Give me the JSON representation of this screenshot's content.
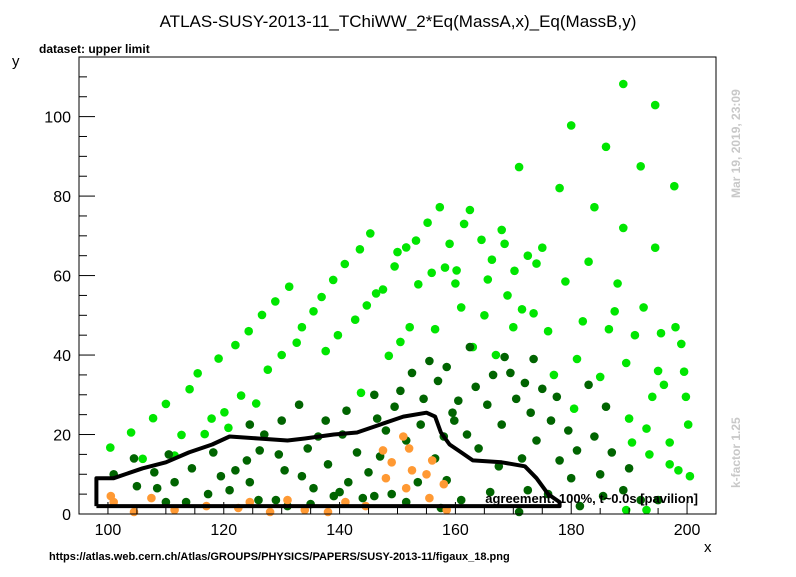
{
  "chart_data": {
    "type": "scatter",
    "title": "ATLAS-SUSY-2013-11_TChiWW_2*Eq(MassA,x)_Eq(MassB,y)",
    "subtitle": "dataset: upper limit",
    "xlabel": "x",
    "ylabel": "y",
    "xlim": [
      95,
      205
    ],
    "ylim": [
      0,
      115
    ],
    "xticks": [
      100,
      120,
      140,
      160,
      180,
      200
    ],
    "yticks": [
      0,
      20,
      40,
      60,
      80,
      100
    ],
    "grid": false,
    "legend": "none",
    "annotation": "agreement: 100%, t~0.0s [pavilion]",
    "side_label_top": "Mar 19, 2019, 23:09",
    "side_label_bottom": "k-factor 1.25",
    "footer_url": "https://atlas.web.cern.ch/Atlas/GROUPS/PHYSICS/PAPERS/SUSY-2013-11/figaux_18.png",
    "colors": {
      "bright_green": "#00e600",
      "dark_green": "#006400",
      "orange": "#ff9933",
      "contour": "#000000",
      "side_label": "#c8c8c8"
    },
    "series": [
      {
        "color": "bright_green",
        "points": [
          [
            100.4,
            16.7
          ],
          [
            104,
            20.5
          ],
          [
            106,
            13.9
          ],
          [
            107.8,
            24.1
          ],
          [
            110,
            27.7
          ],
          [
            111.5,
            14.7
          ],
          [
            112.7,
            19.9
          ],
          [
            114.1,
            31.4
          ],
          [
            115.5,
            35.4
          ],
          [
            116.7,
            20.1
          ],
          [
            117.9,
            24.0
          ],
          [
            119.1,
            39.1
          ],
          [
            120.1,
            25.6
          ],
          [
            120.8,
            21.7
          ],
          [
            122.0,
            42.5
          ],
          [
            123.0,
            29.8
          ],
          [
            124.3,
            46.0
          ],
          [
            125.6,
            27.8
          ],
          [
            126.6,
            50.1
          ],
          [
            127.6,
            36.3
          ],
          [
            128.9,
            53.5
          ],
          [
            130.0,
            40.0
          ],
          [
            131.3,
            57.2
          ],
          [
            132.6,
            43.1
          ],
          [
            133.5,
            47.0
          ],
          [
            135.5,
            51.0
          ],
          [
            136.9,
            54.6
          ],
          [
            137.6,
            41.0
          ],
          [
            138.9,
            58.9
          ],
          [
            139.7,
            45.0
          ],
          [
            140.9,
            62.9
          ],
          [
            142.7,
            48.9
          ],
          [
            143.5,
            66.6
          ],
          [
            143.7,
            30.5
          ],
          [
            144.7,
            52.5
          ],
          [
            145.3,
            70.6
          ],
          [
            146.3,
            55.5
          ],
          [
            147.5,
            56.5
          ],
          [
            148.5,
            39.8
          ],
          [
            149.5,
            62.3
          ],
          [
            150.0,
            65.9
          ],
          [
            150.5,
            43.3
          ],
          [
            151.5,
            67.1
          ],
          [
            152.1,
            47.0
          ],
          [
            153.2,
            68.8
          ],
          [
            153.6,
            57.8
          ],
          [
            155.2,
            73.3
          ],
          [
            155.9,
            60.7
          ],
          [
            156.5,
            46.5
          ],
          [
            157.3,
            77.2
          ],
          [
            158.2,
            62.0
          ],
          [
            159.0,
            68.0
          ],
          [
            160.0,
            58.0
          ],
          [
            160.2,
            61.3
          ],
          [
            161.0,
            52.0
          ],
          [
            161.5,
            73.0
          ],
          [
            162.5,
            76.5
          ],
          [
            163.0,
            42.0
          ],
          [
            164.5,
            69.0
          ],
          [
            165.0,
            50.0
          ],
          [
            165.6,
            59.0
          ],
          [
            166.3,
            64.0
          ],
          [
            167.0,
            40.0
          ],
          [
            168.0,
            71.5
          ],
          [
            168.5,
            68.0
          ],
          [
            169.0,
            55.0
          ],
          [
            170.0,
            47.0
          ],
          [
            170.2,
            61.2
          ],
          [
            171.0,
            87.3
          ],
          [
            171.5,
            51.5
          ],
          [
            172.5,
            65.0
          ],
          [
            173.5,
            50.5
          ],
          [
            174.0,
            63.0
          ],
          [
            175.0,
            67.0
          ],
          [
            176.0,
            46.0
          ],
          [
            177.0,
            35.0
          ],
          [
            178.0,
            82.0
          ],
          [
            179.0,
            58.5
          ],
          [
            180.0,
            97.8
          ],
          [
            180.5,
            26.5
          ],
          [
            181.0,
            39.0
          ],
          [
            182.0,
            48.5
          ],
          [
            183.0,
            63.5
          ],
          [
            184.0,
            77.2
          ],
          [
            185.0,
            34.5
          ],
          [
            186.0,
            92.4
          ],
          [
            186.5,
            46.5
          ],
          [
            187.5,
            51.0
          ],
          [
            188.0,
            58.0
          ],
          [
            189.0,
            72.0
          ],
          [
            189.0,
            108.2
          ],
          [
            189.5,
            38.0
          ],
          [
            190.0,
            24.0
          ],
          [
            190.5,
            18.0
          ],
          [
            191.0,
            45.0
          ],
          [
            192.0,
            87.5
          ],
          [
            192.5,
            52.0
          ],
          [
            193.0,
            21.5
          ],
          [
            193.5,
            15.0
          ],
          [
            194.0,
            29.5
          ],
          [
            194.5,
            102.9
          ],
          [
            194.5,
            67.0
          ],
          [
            195.0,
            36.0
          ],
          [
            195.5,
            45.5
          ],
          [
            196.0,
            32.5
          ],
          [
            197.0,
            18.0
          ],
          [
            197.0,
            12.5
          ],
          [
            197.8,
            82.5
          ],
          [
            198.0,
            47.0
          ],
          [
            198.5,
            11.0
          ],
          [
            199.0,
            42.8
          ],
          [
            199.5,
            35.8
          ],
          [
            199.8,
            29.5
          ],
          [
            200.2,
            22.5
          ],
          [
            200.5,
            9.5
          ],
          [
            193.0,
            1.0
          ],
          [
            189.5,
            1.0
          ]
        ]
      },
      {
        "color": "dark_green",
        "points": [
          [
            101.0,
            10.0
          ],
          [
            105.0,
            7.0
          ],
          [
            108.0,
            10.5
          ],
          [
            110.5,
            15.0
          ],
          [
            111.5,
            8.0
          ],
          [
            114.5,
            11.5
          ],
          [
            117.3,
            5.0
          ],
          [
            118.2,
            15.5
          ],
          [
            121.0,
            6.0
          ],
          [
            122.0,
            11.0
          ],
          [
            124.0,
            13.5
          ],
          [
            124.5,
            22.5
          ],
          [
            126.0,
            3.5
          ],
          [
            126.2,
            16.0
          ],
          [
            127.0,
            20.0
          ],
          [
            129.5,
            15.0
          ],
          [
            130.0,
            23.5
          ],
          [
            130.5,
            11.0
          ],
          [
            131.0,
            2.0
          ],
          [
            133.0,
            27.5
          ],
          [
            133.5,
            9.5
          ],
          [
            134.5,
            16.5
          ],
          [
            135.5,
            6.5
          ],
          [
            136.3,
            19.5
          ],
          [
            137.6,
            23.5
          ],
          [
            138.0,
            12.5
          ],
          [
            139.0,
            4.5
          ],
          [
            140.5,
            20.0
          ],
          [
            141.2,
            26.0
          ],
          [
            141.5,
            8.0
          ],
          [
            143.0,
            15.5
          ],
          [
            144.0,
            4.0
          ],
          [
            145.0,
            10.5
          ],
          [
            146.0,
            30.0
          ],
          [
            146.5,
            24.0
          ],
          [
            147.0,
            14.5
          ],
          [
            148.0,
            21.0
          ],
          [
            149.0,
            5.0
          ],
          [
            149.5,
            27.0
          ],
          [
            150.5,
            31.0
          ],
          [
            151.5,
            18.5
          ],
          [
            152.5,
            35.5
          ],
          [
            153.5,
            8.0
          ],
          [
            154.0,
            22.5
          ],
          [
            154.5,
            29.0
          ],
          [
            155.5,
            38.5
          ],
          [
            156.5,
            14.0
          ],
          [
            157.0,
            33.5
          ],
          [
            158.0,
            19.5
          ],
          [
            158.5,
            37.0
          ],
          [
            159.5,
            25.5
          ],
          [
            159.8,
            23.5
          ],
          [
            160.5,
            28.5
          ],
          [
            162.0,
            20.0
          ],
          [
            162.5,
            42.0
          ],
          [
            163.5,
            32.0
          ],
          [
            164.0,
            16.5
          ],
          [
            165.5,
            27.5
          ],
          [
            166.5,
            35.0
          ],
          [
            167.5,
            12.0
          ],
          [
            168.0,
            22.5
          ],
          [
            168.5,
            39.5
          ],
          [
            169.5,
            35.5
          ],
          [
            170.5,
            29.0
          ],
          [
            171.5,
            14.0
          ],
          [
            172.0,
            33.0
          ],
          [
            173.0,
            25.5
          ],
          [
            173.5,
            39.0
          ],
          [
            174.0,
            18.5
          ],
          [
            175.0,
            31.5
          ],
          [
            176.5,
            23.5
          ],
          [
            177.5,
            29.5
          ],
          [
            178.0,
            13.5
          ],
          [
            179.5,
            21.0
          ],
          [
            180.0,
            9.0
          ],
          [
            181.0,
            16.0
          ],
          [
            181.5,
            2.0
          ],
          [
            183.0,
            32.5
          ],
          [
            184.0,
            19.5
          ],
          [
            185.0,
            10.0
          ],
          [
            186.0,
            27.0
          ],
          [
            187.0,
            15.5
          ],
          [
            189.0,
            6.0
          ],
          [
            190.0,
            11.5
          ],
          [
            192.0,
            3.5
          ],
          [
            195.0,
            3.5
          ],
          [
            185.5,
            4.5
          ],
          [
            176.0,
            5.0
          ],
          [
            172.5,
            6.0
          ],
          [
            166.0,
            5.5
          ],
          [
            161.0,
            3.5
          ],
          [
            157.5,
            1.5
          ],
          [
            151.5,
            3.0
          ],
          [
            146.0,
            4.5
          ],
          [
            140.0,
            5.5
          ],
          [
            135.0,
            2.5
          ],
          [
            129.0,
            3.5
          ],
          [
            124.5,
            8.0
          ],
          [
            119.5,
            9.5
          ],
          [
            113.5,
            3.0
          ],
          [
            108.5,
            6.5
          ],
          [
            104.5,
            14.0
          ],
          [
            110.0,
            3.0
          ],
          [
            171.0,
            0.5
          ],
          [
            158.5,
            8.5
          ]
        ]
      },
      {
        "color": "orange",
        "points": [
          [
            100.5,
            4.5
          ],
          [
            101.0,
            3.0
          ],
          [
            104.5,
            0.5
          ],
          [
            107.5,
            4.0
          ],
          [
            111.5,
            1.0
          ],
          [
            117.0,
            2.0
          ],
          [
            122.5,
            1.5
          ],
          [
            124.5,
            3.0
          ],
          [
            128.0,
            0.5
          ],
          [
            131.0,
            3.5
          ],
          [
            134.0,
            1.0
          ],
          [
            138.0,
            0.5
          ],
          [
            144.5,
            2.0
          ],
          [
            147.5,
            16.0
          ],
          [
            148.0,
            9.0
          ],
          [
            149.0,
            13.0
          ],
          [
            151.0,
            19.5
          ],
          [
            151.5,
            6.5
          ],
          [
            152.0,
            16.5
          ],
          [
            152.5,
            11.0
          ],
          [
            155.0,
            10.0
          ],
          [
            155.5,
            4.0
          ],
          [
            156.0,
            13.5
          ],
          [
            158.0,
            7.5
          ],
          [
            158.5,
            1.0
          ],
          [
            141.0,
            3.0
          ]
        ]
      }
    ],
    "contour": [
      [
        98,
        2
      ],
      [
        98,
        9
      ],
      [
        101,
        9
      ],
      [
        106,
        11.5
      ],
      [
        110,
        13
      ],
      [
        114,
        15.5
      ],
      [
        118,
        17.5
      ],
      [
        121,
        19.5
      ],
      [
        126,
        19
      ],
      [
        131,
        18.5
      ],
      [
        134,
        19
      ],
      [
        139,
        20
      ],
      [
        143,
        20.5
      ],
      [
        147,
        22.5
      ],
      [
        151,
        24.5
      ],
      [
        155,
        25.5
      ],
      [
        156.5,
        24.5
      ],
      [
        157.5,
        20.5
      ],
      [
        159,
        17.5
      ],
      [
        161,
        15.5
      ],
      [
        163,
        13.5
      ],
      [
        168,
        13
      ],
      [
        172,
        12
      ],
      [
        174,
        9
      ],
      [
        176,
        5
      ],
      [
        178,
        3
      ],
      [
        178,
        2
      ],
      [
        98,
        2
      ]
    ]
  }
}
